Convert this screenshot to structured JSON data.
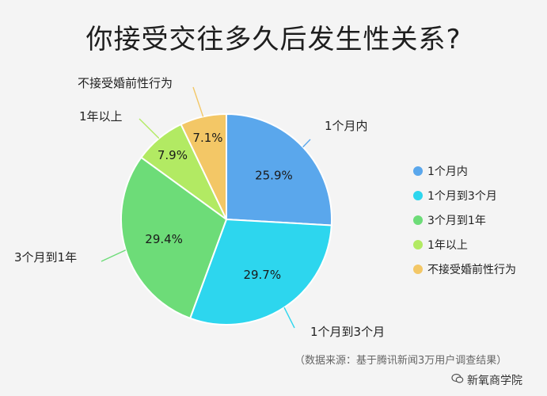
{
  "chart_data": {
    "type": "pie",
    "title": "你接受交往多久后发生性关系?",
    "categories": [
      "1个月内",
      "1个月到3个月",
      "3个月到1年",
      "1年以上",
      "不接受婚前性行为"
    ],
    "values": [
      25.9,
      29.7,
      29.4,
      7.9,
      7.1
    ],
    "value_labels": [
      "25.9%",
      "29.7%",
      "29.4%",
      "7.9%",
      "7.1%"
    ],
    "colors": [
      "#5aa7ec",
      "#2dd6ee",
      "#6ddc78",
      "#b2ea63",
      "#f3c766"
    ],
    "legend": [
      "1个月内",
      "1个月到3个月",
      "3个月到1年",
      "1年以上",
      "不接受婚前性行为"
    ],
    "legend_position": "right"
  },
  "source_note": "（数据来源：基于腾讯新闻3万用户调查结果）",
  "brand": "新氧商学院",
  "icons": {
    "brand": "wechat-bubble-icon"
  }
}
